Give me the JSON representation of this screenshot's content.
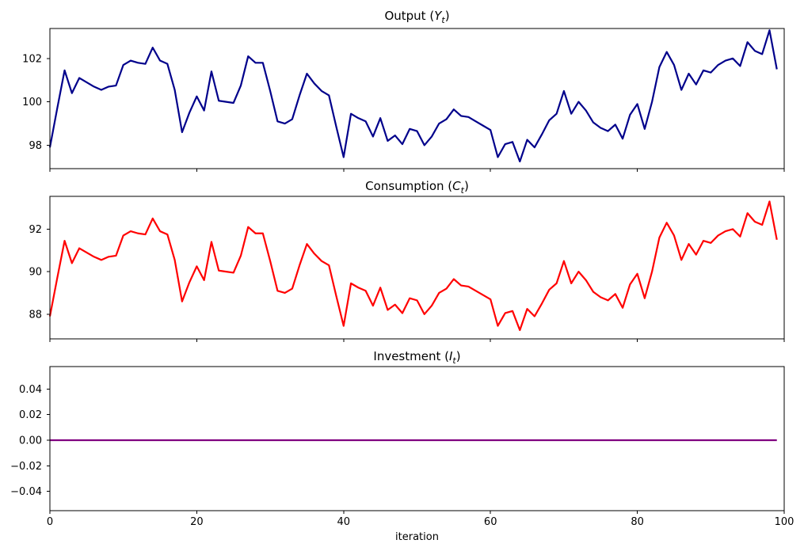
{
  "figure": {
    "background": "#ffffff",
    "xlabel": "iteration",
    "text_color": "#000000",
    "spine_color": "#000000"
  },
  "chart_data": [
    {
      "type": "line",
      "name": "output",
      "title_prefix": "Output (",
      "title_symbol": "Y",
      "title_subscript": "t",
      "title_suffix": ")",
      "line_color": "#00008B",
      "x_start": 0,
      "x_step": 1,
      "values": [
        97.9,
        99.7,
        101.45,
        100.4,
        101.1,
        100.9,
        100.7,
        100.55,
        100.7,
        100.75,
        101.7,
        101.9,
        101.8,
        101.75,
        102.5,
        101.9,
        101.75,
        100.55,
        98.6,
        99.5,
        100.25,
        99.6,
        101.4,
        100.05,
        100.0,
        99.95,
        100.75,
        102.1,
        101.8,
        101.8,
        100.5,
        99.1,
        99.0,
        99.2,
        100.3,
        101.3,
        100.85,
        100.5,
        100.3,
        98.85,
        97.45,
        99.45,
        99.25,
        99.1,
        98.4,
        99.25,
        98.2,
        98.45,
        98.05,
        98.75,
        98.65,
        98.0,
        98.4,
        99.0,
        99.2,
        99.65,
        99.35,
        99.3,
        99.1,
        98.9,
        98.7,
        97.45,
        98.05,
        98.15,
        97.25,
        98.25,
        97.9,
        98.5,
        99.15,
        99.45,
        100.5,
        99.45,
        100.0,
        99.6,
        99.05,
        98.8,
        98.65,
        98.95,
        98.3,
        99.4,
        99.9,
        98.75,
        100.0,
        101.6,
        102.3,
        101.7,
        100.55,
        101.3,
        100.8,
        101.45,
        101.35,
        101.7,
        101.9,
        102.0,
        101.65,
        102.75,
        102.35,
        102.2,
        103.3,
        101.5
      ],
      "xlim": [
        0,
        100
      ],
      "ylim": [
        96.92,
        103.38
      ],
      "yticks": [
        98,
        100,
        102
      ],
      "ytick_labels": [
        "98",
        "100",
        "102"
      ],
      "xticks": [
        0,
        20,
        40,
        60,
        80,
        100
      ],
      "xtick_labels": [
        "0",
        "20",
        "40",
        "60",
        "80",
        "100"
      ],
      "show_xtick_labels": false,
      "grid": false,
      "legend": null
    },
    {
      "type": "line",
      "name": "consumption",
      "title_prefix": "Consumption (",
      "title_symbol": "C",
      "title_subscript": "t",
      "title_suffix": ")",
      "line_color": "#FF0000",
      "x_start": 0,
      "x_step": 1,
      "values": [
        87.9,
        89.7,
        91.45,
        90.4,
        91.1,
        90.9,
        90.7,
        90.55,
        90.7,
        90.75,
        91.7,
        91.9,
        91.8,
        91.75,
        92.5,
        91.9,
        91.75,
        90.55,
        88.6,
        89.5,
        90.25,
        89.6,
        91.4,
        90.05,
        90.0,
        89.95,
        90.75,
        92.1,
        91.8,
        91.8,
        90.5,
        89.1,
        89.0,
        89.2,
        90.3,
        91.3,
        90.85,
        90.5,
        90.3,
        88.85,
        87.45,
        89.45,
        89.25,
        89.1,
        88.4,
        89.25,
        88.2,
        88.45,
        88.05,
        88.75,
        88.65,
        88.0,
        88.4,
        89.0,
        89.2,
        89.65,
        89.35,
        89.3,
        89.1,
        88.9,
        88.7,
        87.45,
        88.05,
        88.15,
        87.25,
        88.25,
        87.9,
        88.5,
        89.15,
        89.45,
        90.5,
        89.45,
        90.0,
        89.6,
        89.05,
        88.8,
        88.65,
        88.95,
        88.3,
        89.4,
        89.9,
        88.75,
        90.0,
        91.6,
        92.3,
        91.7,
        90.55,
        91.3,
        90.8,
        91.45,
        91.35,
        91.7,
        91.9,
        92.0,
        91.65,
        92.75,
        92.35,
        92.2,
        93.3,
        91.5
      ],
      "xlim": [
        0,
        100
      ],
      "ylim": [
        86.84,
        93.54
      ],
      "yticks": [
        88,
        90,
        92
      ],
      "ytick_labels": [
        "88",
        "90",
        "92"
      ],
      "xticks": [
        0,
        20,
        40,
        60,
        80,
        100
      ],
      "xtick_labels": [
        "0",
        "20",
        "40",
        "60",
        "80",
        "100"
      ],
      "show_xtick_labels": false,
      "grid": false,
      "legend": null
    },
    {
      "type": "line",
      "name": "investment",
      "title_prefix": "Investment (",
      "title_symbol": "I",
      "title_subscript": "t",
      "title_suffix": ")",
      "line_color": "#800080",
      "x_start": 0,
      "x_step": 1,
      "constant_value": 0.0,
      "num_points": 100,
      "xlim": [
        0,
        100
      ],
      "ylim": [
        -0.0551,
        0.0576
      ],
      "yticks": [
        -0.04,
        -0.02,
        0.0,
        0.02,
        0.04
      ],
      "ytick_labels": [
        "−0.04",
        "−0.02",
        "0.00",
        "0.02",
        "0.04"
      ],
      "xticks": [
        0,
        20,
        40,
        60,
        80,
        100
      ],
      "xtick_labels": [
        "0",
        "20",
        "40",
        "60",
        "80",
        "100"
      ],
      "show_xtick_labels": true,
      "grid": false,
      "legend": null
    }
  ]
}
